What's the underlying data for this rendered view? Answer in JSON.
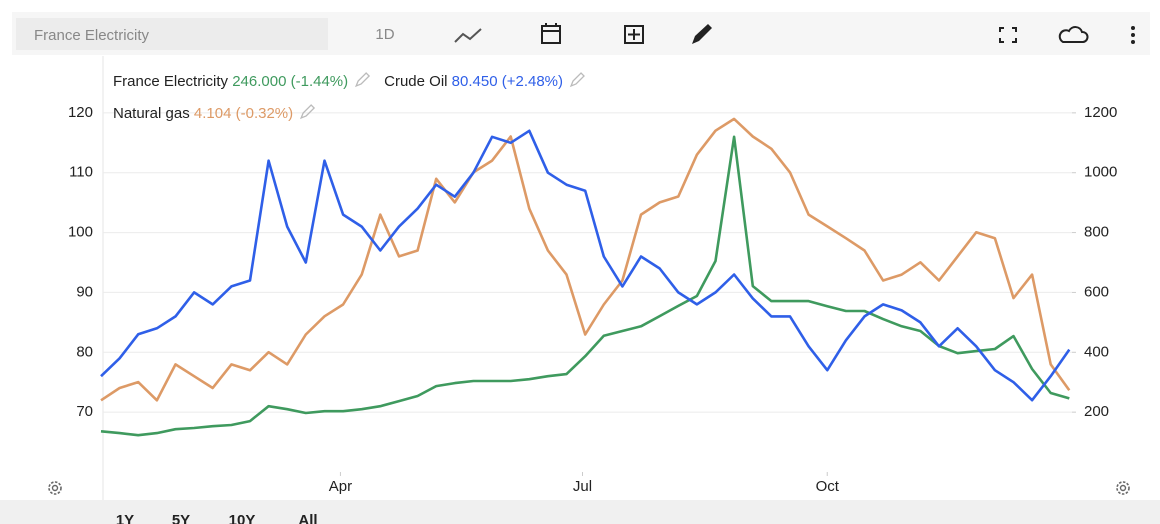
{
  "toolbar": {
    "symbol": "France Electricity",
    "interval": "1D"
  },
  "ranges": [
    "1Y",
    "5Y",
    "10Y",
    "All"
  ],
  "chart_data": {
    "type": "line",
    "x": [
      0,
      7,
      14,
      21,
      28,
      35,
      42,
      49,
      56,
      63,
      70,
      77,
      84,
      91,
      98,
      105,
      112,
      119,
      126,
      133,
      140,
      147,
      154,
      161,
      168,
      175,
      182,
      189,
      196,
      203,
      210,
      217,
      224,
      231,
      238,
      245,
      252,
      259,
      266,
      273,
      280,
      287,
      294,
      301,
      308,
      315,
      322,
      329,
      336,
      343,
      350,
      357,
      364
    ],
    "xlim": [
      0,
      365
    ],
    "xticks": [
      {
        "value": 90,
        "label": "Apr"
      },
      {
        "value": 181,
        "label": "Jul"
      },
      {
        "value": 273,
        "label": "Oct"
      }
    ],
    "ylim": [
      60,
      129.5
    ],
    "yticks": [
      70,
      80,
      90,
      100,
      110,
      120
    ],
    "y2lim": [
      0,
      1390
    ],
    "y2ticks": [
      200,
      400,
      600,
      800,
      1000,
      1200
    ],
    "y3lim": [
      2.44,
      10.91
    ],
    "grid": true,
    "series": [
      {
        "name": "France Electricity",
        "color": "#3f9a5e",
        "axis": "y2",
        "last": "246.000",
        "change": "(-1.44%)",
        "values": [
          136,
          130,
          123,
          130,
          143,
          147,
          153,
          157,
          170,
          220,
          210,
          197,
          203,
          203,
          210,
          220,
          237,
          254,
          287,
          297,
          304,
          304,
          304,
          310,
          320,
          327,
          387,
          455,
          471,
          487,
          521,
          555,
          588,
          705,
          1120,
          621,
          571,
          571,
          571,
          554,
          538,
          538,
          511,
          487,
          471,
          421,
          397,
          404,
          411,
          454,
          344,
          264,
          246
        ]
      },
      {
        "name": "Crude Oil",
        "color": "#2f5fe8",
        "axis": "y",
        "last": "80.450",
        "change": "(+2.48%)",
        "values": [
          76,
          79,
          83,
          84,
          86,
          90,
          88,
          91,
          92,
          112,
          101,
          95,
          112,
          103,
          101,
          97,
          101,
          104,
          108,
          106,
          110,
          116,
          115,
          117,
          110,
          108,
          107,
          96,
          91,
          96,
          94,
          90,
          88,
          90,
          93,
          89,
          86,
          86,
          81,
          77,
          82,
          86,
          88,
          87,
          85,
          81,
          84,
          81,
          77,
          75,
          72,
          76,
          80.45
        ]
      },
      {
        "name": "Natural gas",
        "color": "#dd9a66",
        "axis": "y3",
        "last": "4.104",
        "change": "(-0.32%)",
        "values": [
          3.9,
          4.15,
          4.27,
          3.9,
          4.63,
          4.39,
          4.15,
          4.63,
          4.51,
          4.88,
          4.63,
          5.24,
          5.61,
          5.85,
          6.46,
          7.68,
          6.83,
          6.95,
          8.41,
          7.93,
          8.54,
          8.78,
          9.27,
          7.8,
          6.95,
          6.46,
          5.24,
          5.85,
          6.34,
          7.68,
          7.93,
          8.05,
          8.9,
          9.39,
          9.63,
          9.27,
          9.02,
          8.54,
          7.68,
          7.44,
          7.2,
          6.95,
          6.34,
          6.46,
          6.71,
          6.34,
          6.83,
          7.32,
          7.2,
          5.98,
          6.46,
          4.63,
          4.104
        ]
      }
    ]
  }
}
